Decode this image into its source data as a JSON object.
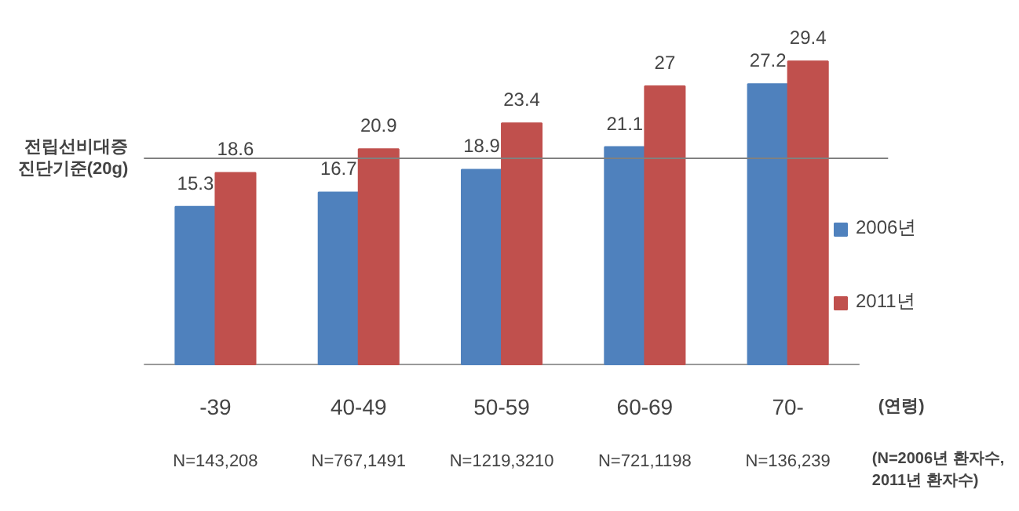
{
  "chart_data": {
    "type": "bar",
    "categories": [
      "-39",
      "40-49",
      "50-59",
      "60-69",
      "70-"
    ],
    "series": [
      {
        "name": "2006년",
        "color": "#4f81bd",
        "values": [
          15.3,
          16.7,
          18.9,
          21.1,
          27.2
        ]
      },
      {
        "name": "2011년",
        "color": "#c0504d",
        "values": [
          18.6,
          20.9,
          23.4,
          27,
          29.4
        ]
      }
    ],
    "data_labels": true,
    "xlabel": "(연령)",
    "legend": "right",
    "grid": false,
    "ref_lines": [
      {
        "axis": "y",
        "value": 20,
        "label": "전립선비대증\n진단기준(20g)",
        "color": "#808080"
      }
    ],
    "annotations": [
      "N=143,208",
      "N=767,1491",
      "N=1219,3210",
      "N=721,1198",
      "N=136,239",
      "(N=2006년 환자수,\n2011년 환자수)"
    ]
  }
}
